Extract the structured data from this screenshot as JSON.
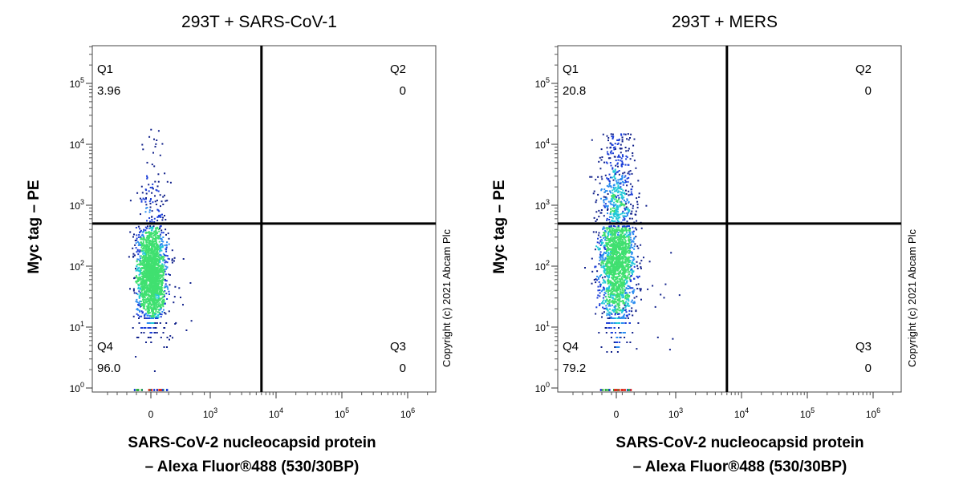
{
  "copyright": "Copyright (c) 2021 Abcam Plc",
  "chart_data": [
    {
      "type": "scatter",
      "title": "293T + SARS-CoV-1",
      "xlabel_line1": "SARS-CoV-2 nucleocapsid protein",
      "xlabel_line2": "– Alexa Fluor®488 (530/30BP)",
      "ylabel": "Myc tag – PE",
      "x_ticks": [
        {
          "base": "0",
          "exp": ""
        },
        {
          "base": "10",
          "exp": "3"
        },
        {
          "base": "10",
          "exp": "4"
        },
        {
          "base": "10",
          "exp": "5"
        },
        {
          "base": "10",
          "exp": "6"
        }
      ],
      "y_ticks": [
        {
          "base": "10",
          "exp": "0"
        },
        {
          "base": "10",
          "exp": "1"
        },
        {
          "base": "10",
          "exp": "2"
        },
        {
          "base": "10",
          "exp": "3"
        },
        {
          "base": "10",
          "exp": "4"
        },
        {
          "base": "10",
          "exp": "5"
        }
      ],
      "gate": {
        "x": 6000,
        "y": 500
      },
      "quadrants": [
        {
          "name": "Q1",
          "value": "3.96"
        },
        {
          "name": "Q2",
          "value": "0"
        },
        {
          "name": "Q3",
          "value": "0"
        },
        {
          "name": "Q4",
          "value": "96.0"
        }
      ],
      "population": {
        "x_center": 0,
        "y_core": 70,
        "upper_tail_fraction": 0.04
      }
    },
    {
      "type": "scatter",
      "title": "293T + MERS",
      "xlabel_line1": "SARS-CoV-2 nucleocapsid protein",
      "xlabel_line2": "– Alexa Fluor®488 (530/30BP)",
      "ylabel": "Myc tag – PE",
      "x_ticks": [
        {
          "base": "0",
          "exp": ""
        },
        {
          "base": "10",
          "exp": "3"
        },
        {
          "base": "10",
          "exp": "4"
        },
        {
          "base": "10",
          "exp": "5"
        },
        {
          "base": "10",
          "exp": "6"
        }
      ],
      "y_ticks": [
        {
          "base": "10",
          "exp": "0"
        },
        {
          "base": "10",
          "exp": "1"
        },
        {
          "base": "10",
          "exp": "2"
        },
        {
          "base": "10",
          "exp": "3"
        },
        {
          "base": "10",
          "exp": "4"
        },
        {
          "base": "10",
          "exp": "5"
        }
      ],
      "gate": {
        "x": 6000,
        "y": 500
      },
      "quadrants": [
        {
          "name": "Q1",
          "value": "20.8"
        },
        {
          "name": "Q2",
          "value": "0"
        },
        {
          "name": "Q3",
          "value": "0"
        },
        {
          "name": "Q4",
          "value": "79.2"
        }
      ],
      "population": {
        "x_center": 0,
        "y_core": 100,
        "upper_tail_fraction": 0.21
      }
    }
  ]
}
